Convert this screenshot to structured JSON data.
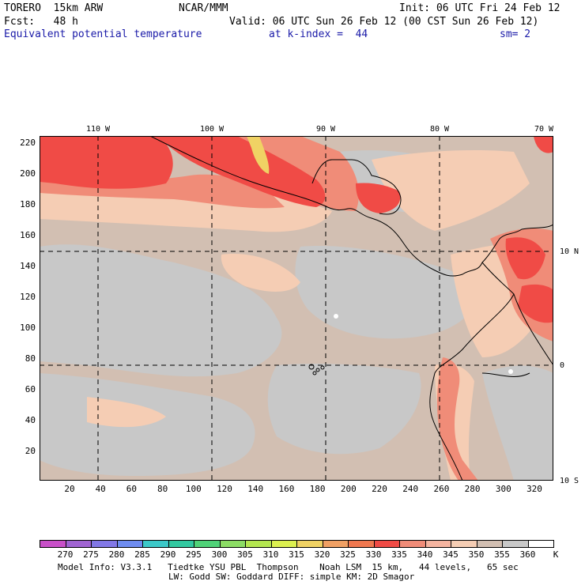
{
  "header": {
    "model": "TORERO  15km ARW",
    "center": "NCAR/MMM",
    "init": "Init: 06 UTC Fri 24 Feb 12",
    "fcst": "Fcst:   48 h",
    "valid": "Valid: 06 UTC Sun 26 Feb 12 (00 CST Sun 26 Feb 12)",
    "field": "Equivalent potential temperature",
    "level": "at k-index =  44",
    "smooth": "sm= 2"
  },
  "axes": {
    "y_ticks": [
      "220",
      "200",
      "180",
      "160",
      "140",
      "120",
      "100",
      "80",
      "60",
      "40",
      "20"
    ],
    "x_ticks": [
      "20",
      "40",
      "60",
      "80",
      "100",
      "120",
      "140",
      "160",
      "180",
      "200",
      "220",
      "240",
      "260",
      "280",
      "300",
      "320"
    ],
    "lon_labels": [
      "110 W",
      "100 W",
      "90 W",
      "80 W",
      "70 W"
    ],
    "lat_labels": [
      "10 N",
      "0",
      "10 S"
    ]
  },
  "colorbar": {
    "labels": [
      "270",
      "275",
      "280",
      "285",
      "290",
      "295",
      "300",
      "305",
      "310",
      "315",
      "320",
      "325",
      "330",
      "335",
      "340",
      "345",
      "350",
      "355",
      "360"
    ],
    "unit": "K",
    "colors": [
      "#c850c8",
      "#a064d2",
      "#8278e6",
      "#6e8cf0",
      "#3cc8c8",
      "#32c8a0",
      "#50d278",
      "#8cdc64",
      "#b4e650",
      "#dcf050",
      "#f0d264",
      "#f0a064",
      "#f07850",
      "#f04b46",
      "#f08c78",
      "#f5b4a0",
      "#f5cdb4",
      "#d2bfb2",
      "#c8c8c8",
      "#ffffff"
    ]
  },
  "map_colors": {
    "base": "#d2bfb2",
    "cool": "#c8c8c8",
    "warm": "#f5cdb4",
    "mid": "#f08c78",
    "hot": "#f04b46",
    "hottest": "#f0d264",
    "white": "#ffffff"
  },
  "footer": {
    "line1": "Model Info: V3.3.1   Tiedtke YSU PBL  Thompson    Noah LSM  15 km,   44 levels,   65 sec",
    "line2": "LW: Godd SW: Goddard DIFF: simple KM: 2D Smagor"
  }
}
